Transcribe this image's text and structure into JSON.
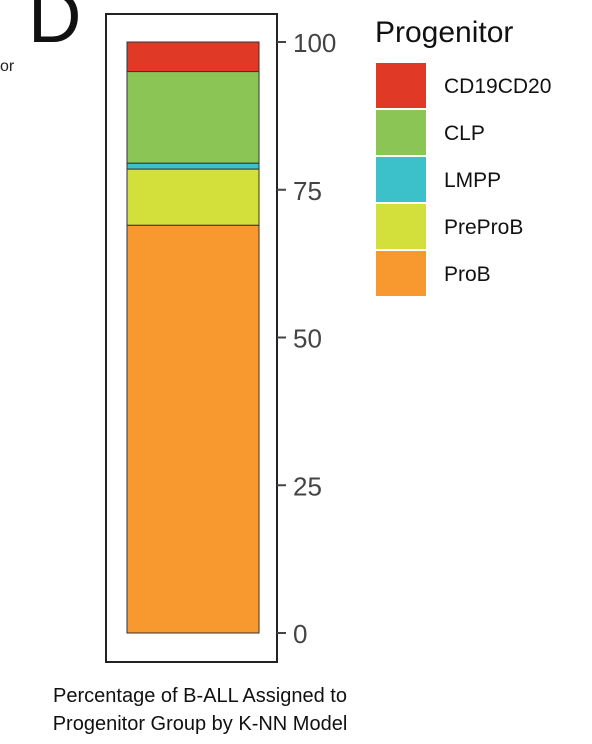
{
  "panel_label": "D",
  "cut_off_text": "or",
  "caption": {
    "line1": "Percentage of B-ALL Assigned to",
    "line2": "Progenitor Group by K-NN Model"
  },
  "chart_data": {
    "type": "bar",
    "stacked": true,
    "ylim": [
      0,
      100
    ],
    "yticks": [
      "0",
      "25",
      "50",
      "75",
      "100"
    ],
    "ytick_values": [
      0,
      25,
      50,
      75,
      100
    ],
    "legend": {
      "title": "Progenitor",
      "placement": "right"
    },
    "series": [
      {
        "name": "ProB",
        "value": 69,
        "color": "#F7992F"
      },
      {
        "name": "PreProB",
        "value": 9.5,
        "color": "#D3DF3B"
      },
      {
        "name": "LMPP",
        "value": 1,
        "color": "#3CC0CA"
      },
      {
        "name": "CLP",
        "value": 15.5,
        "color": "#8BC556"
      },
      {
        "name": "CD19CD20",
        "value": 5,
        "color": "#E03A27"
      }
    ],
    "legend_order": [
      "CD19CD20",
      "CLP",
      "LMPP",
      "PreProB",
      "ProB"
    ]
  }
}
